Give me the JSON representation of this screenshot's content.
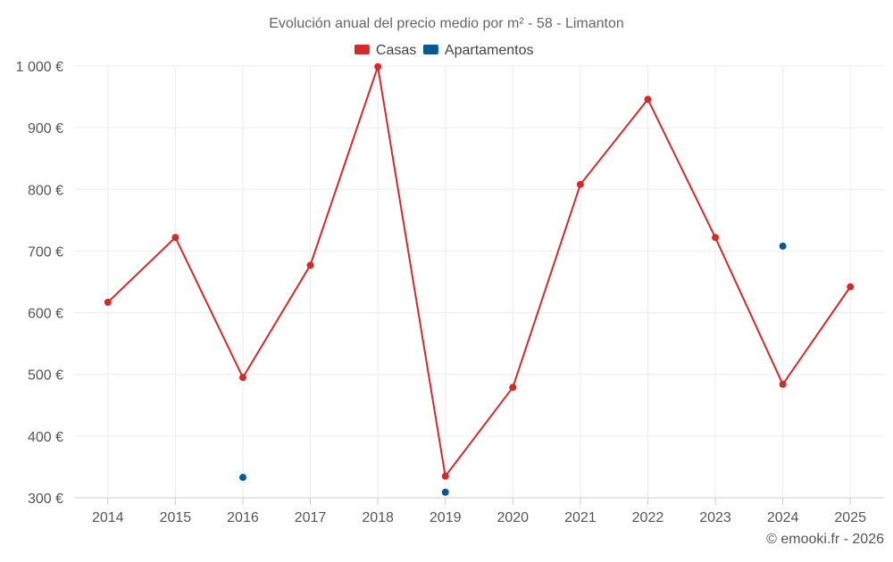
{
  "chart_data": {
    "type": "line",
    "title": "Evolución anual del precio medio por m² - 58 - Limanton",
    "categories": [
      "2014",
      "2015",
      "2016",
      "2017",
      "2018",
      "2019",
      "2020",
      "2021",
      "2022",
      "2023",
      "2024",
      "2025"
    ],
    "series": [
      {
        "name": "Casas",
        "color": "#d42a2a",
        "values": [
          617,
          722,
          495,
          677,
          999,
          335,
          479,
          808,
          946,
          722,
          484,
          642
        ]
      },
      {
        "name": "Apartamentos",
        "color": "#045a94",
        "values": [
          null,
          null,
          333,
          null,
          null,
          309,
          null,
          null,
          null,
          null,
          708,
          null
        ]
      }
    ],
    "yticks": [
      "300 €",
      "400 €",
      "500 €",
      "600 €",
      "700 €",
      "800 €",
      "900 €",
      "1 000 €"
    ],
    "ylim": [
      300,
      1000
    ],
    "grid": true,
    "legend": "top-center",
    "footer": "© emooki.fr - 2026"
  }
}
